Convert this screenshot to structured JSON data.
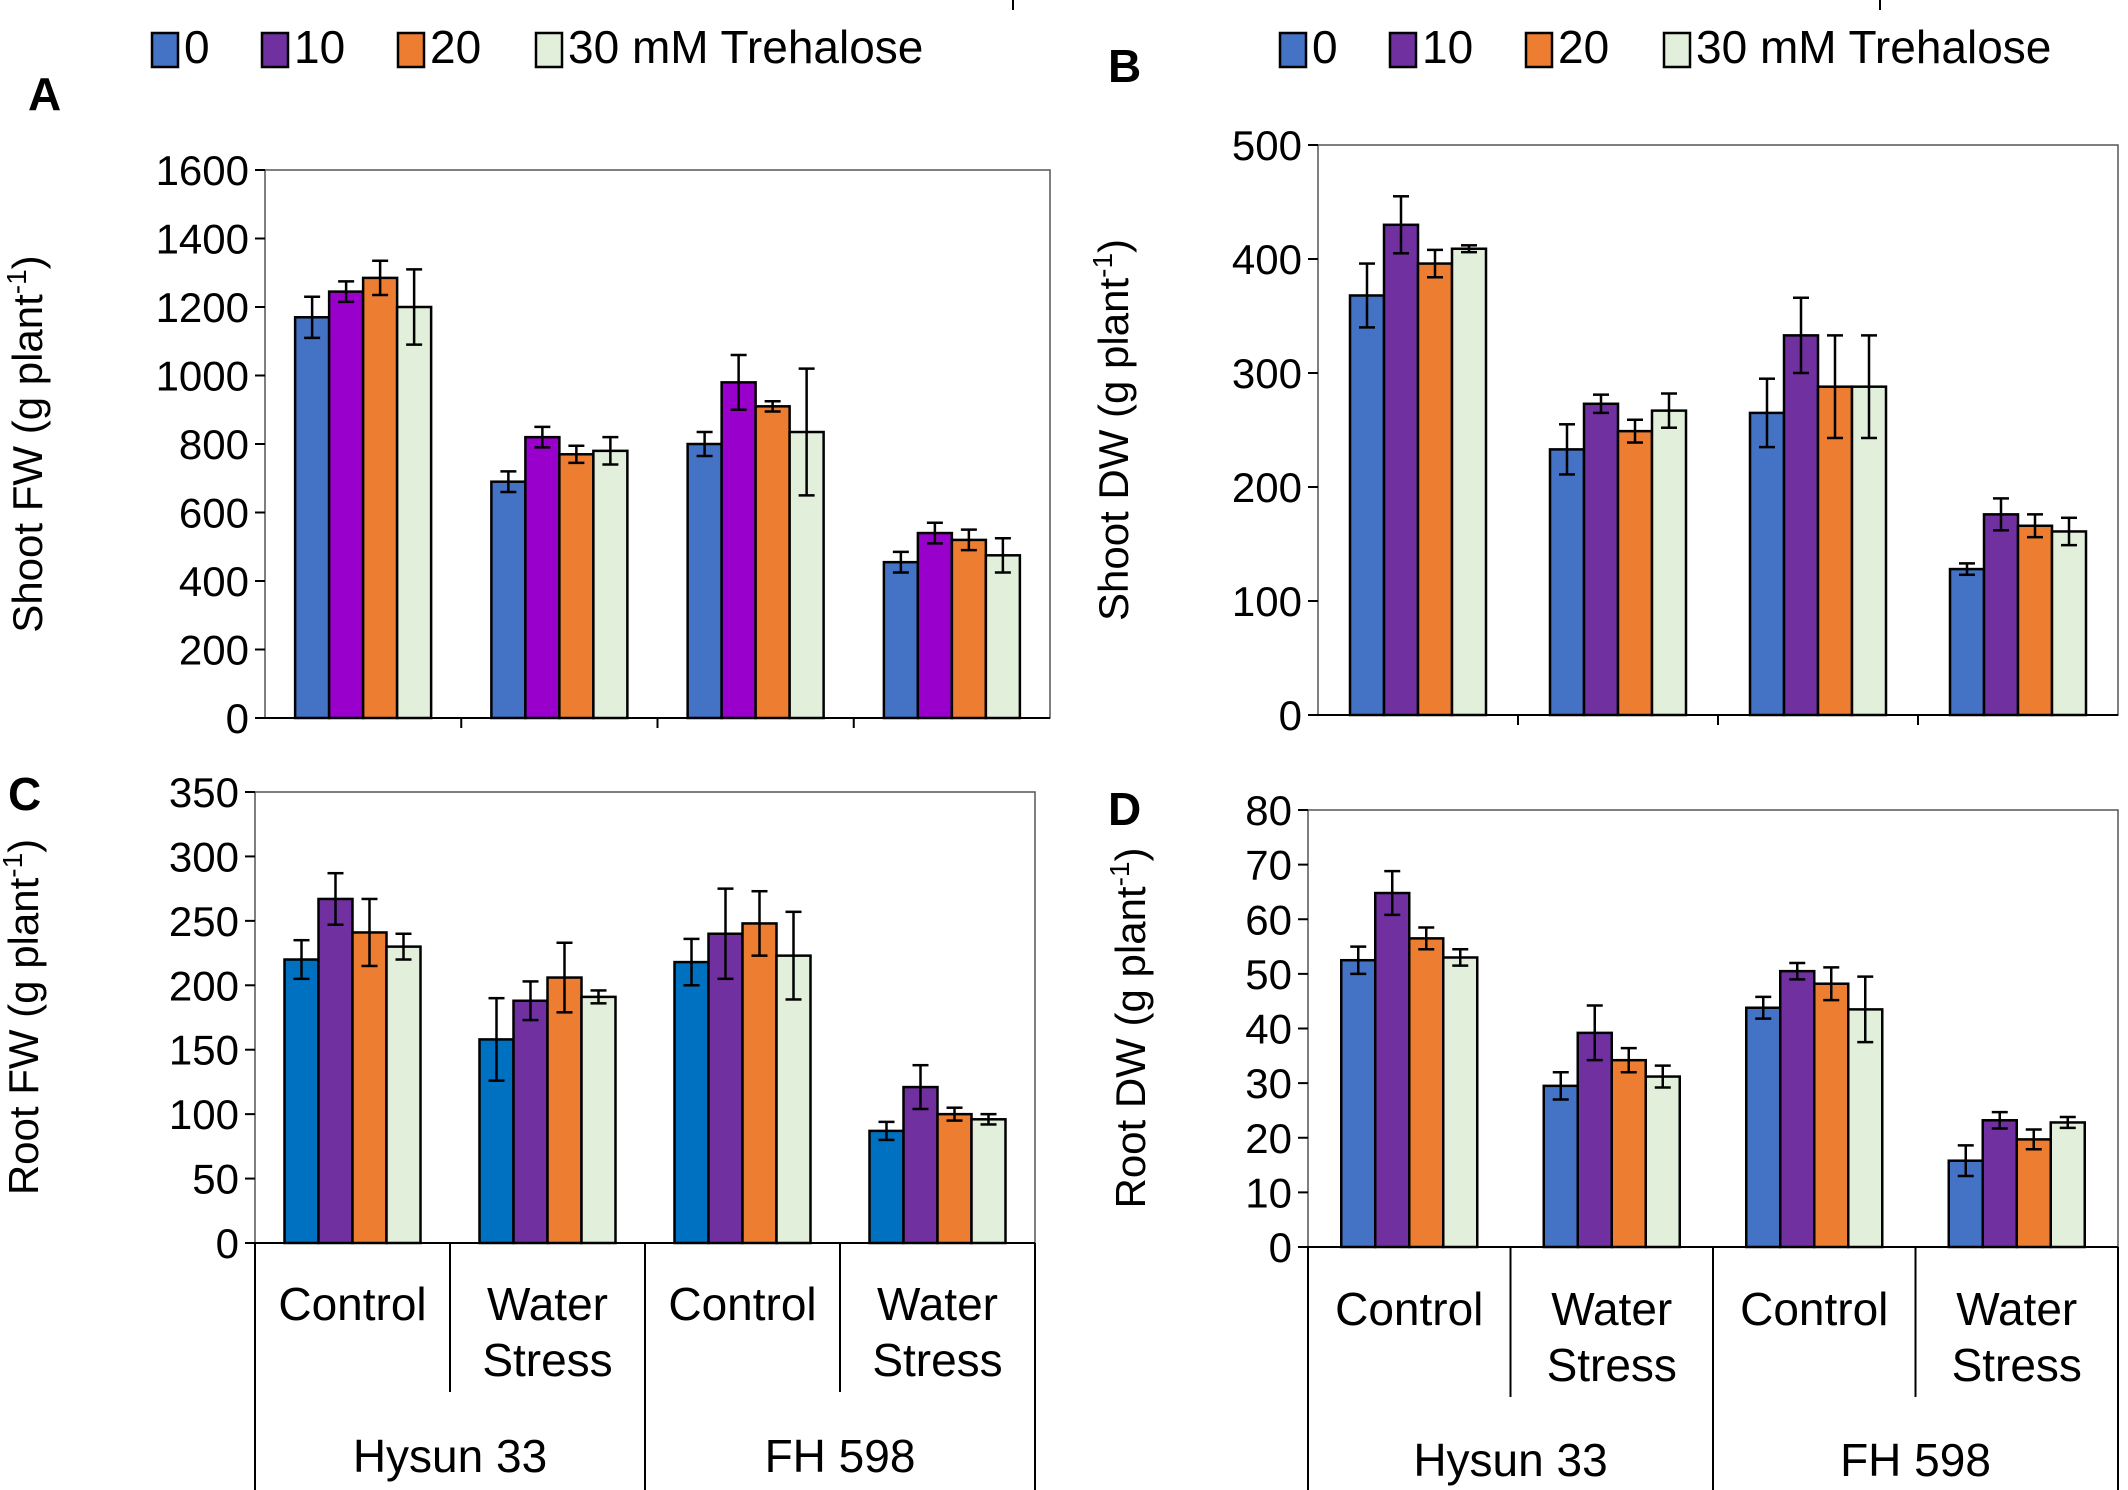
{
  "legend": {
    "items": [
      {
        "label": "0",
        "color": "#4472C4"
      },
      {
        "label": "10",
        "color": "#7030A0"
      },
      {
        "label": "20",
        "color": "#ED7D31"
      },
      {
        "label": "30 mM Trehalose",
        "color": "#E2EFDA"
      }
    ]
  },
  "x_axis": {
    "conditions": [
      "Control",
      "Water\nStress",
      "Control",
      "Water\nStress"
    ],
    "genotypes": [
      "Hysun 33",
      "FH 598"
    ]
  },
  "chart_data": [
    {
      "panel": "A",
      "type": "bar",
      "ylabel": "Shoot FW (g plant",
      "ylabel_sup": "-1",
      "ylabel_close": ")",
      "ylim": [
        0,
        1600
      ],
      "yticks": [
        0,
        200,
        400,
        600,
        800,
        1000,
        1200,
        1400,
        1600
      ],
      "categories": [
        "Hysun 33 Control",
        "Hysun 33 Water Stress",
        "FH 598 Control",
        "FH 598 Water Stress"
      ],
      "series": [
        {
          "name": "0",
          "color": "#4472C4",
          "values": [
            1170,
            690,
            800,
            455
          ],
          "errors": [
            60,
            30,
            35,
            30
          ]
        },
        {
          "name": "10",
          "color": "#9900CC",
          "values": [
            1245,
            820,
            980,
            540
          ],
          "errors": [
            30,
            30,
            80,
            30
          ]
        },
        {
          "name": "20",
          "color": "#ED7D31",
          "values": [
            1285,
            770,
            910,
            520
          ],
          "errors": [
            50,
            25,
            15,
            30
          ]
        },
        {
          "name": "30 mM Trehalose",
          "color": "#E2EFDA",
          "values": [
            1200,
            780,
            835,
            475
          ],
          "errors": [
            110,
            40,
            185,
            50
          ]
        }
      ]
    },
    {
      "panel": "B",
      "type": "bar",
      "ylabel": "Shoot DW (g plant",
      "ylabel_sup": "-1",
      "ylabel_close": ")",
      "ylim": [
        0,
        500
      ],
      "yticks": [
        0,
        100,
        200,
        300,
        400,
        500
      ],
      "categories": [
        "Hysun 33 Control",
        "Hysun 33 Water Stress",
        "FH 598 Control",
        "FH 598 Water Stress"
      ],
      "series": [
        {
          "name": "0",
          "color": "#4472C4",
          "values": [
            368,
            233,
            265,
            128
          ],
          "errors": [
            28,
            22,
            30,
            5
          ]
        },
        {
          "name": "10",
          "color": "#7030A0",
          "values": [
            430,
            273,
            333,
            176
          ],
          "errors": [
            25,
            8,
            33,
            14
          ]
        },
        {
          "name": "20",
          "color": "#ED7D31",
          "values": [
            396,
            249,
            288,
            166
          ],
          "errors": [
            12,
            10,
            45,
            10
          ]
        },
        {
          "name": "30 mM Trehalose",
          "color": "#E2EFDA",
          "values": [
            409,
            267,
            288,
            161
          ],
          "errors": [
            3,
            15,
            45,
            12
          ]
        }
      ]
    },
    {
      "panel": "C",
      "type": "bar",
      "ylabel": "Root FW (g plant",
      "ylabel_sup": "-1",
      "ylabel_close": ")",
      "ylim": [
        0,
        350
      ],
      "yticks": [
        0,
        50,
        100,
        150,
        200,
        250,
        300,
        350
      ],
      "categories": [
        "Hysun 33 Control",
        "Hysun 33 Water Stress",
        "FH 598 Control",
        "FH 598 Water Stress"
      ],
      "series": [
        {
          "name": "0",
          "color": "#0070C0",
          "values": [
            220,
            158,
            218,
            87
          ],
          "errors": [
            15,
            32,
            18,
            7
          ]
        },
        {
          "name": "10",
          "color": "#7030A0",
          "values": [
            267,
            188,
            240,
            121
          ],
          "errors": [
            20,
            15,
            35,
            17
          ]
        },
        {
          "name": "20",
          "color": "#ED7D31",
          "values": [
            241,
            206,
            248,
            100
          ],
          "errors": [
            26,
            27,
            25,
            5
          ]
        },
        {
          "name": "30 mM Trehalose",
          "color": "#E2EFDA",
          "values": [
            230,
            191,
            223,
            96
          ],
          "errors": [
            10,
            5,
            34,
            4
          ]
        }
      ]
    },
    {
      "panel": "D",
      "type": "bar",
      "ylabel": "Root DW (g plant",
      "ylabel_sup": "-1",
      "ylabel_close": ")",
      "ylim": [
        0,
        80
      ],
      "yticks": [
        0,
        10,
        20,
        30,
        40,
        50,
        60,
        70,
        80
      ],
      "categories": [
        "Hysun 33 Control",
        "Hysun 33 Water Stress",
        "FH 598 Control",
        "FH 598 Water Stress"
      ],
      "series": [
        {
          "name": "0",
          "color": "#4472C4",
          "values": [
            52.5,
            29.5,
            43.8,
            15.8
          ],
          "errors": [
            2.5,
            2.5,
            2,
            2.8
          ]
        },
        {
          "name": "10",
          "color": "#7030A0",
          "values": [
            64.8,
            39.2,
            50.5,
            23.2
          ],
          "errors": [
            4,
            5,
            1.5,
            1.5
          ]
        },
        {
          "name": "20",
          "color": "#ED7D31",
          "values": [
            56.5,
            34.2,
            48.2,
            19.7
          ],
          "errors": [
            2,
            2.2,
            3,
            1.8
          ]
        },
        {
          "name": "30 mM Trehalose",
          "color": "#E2EFDA",
          "values": [
            53,
            31.2,
            43.5,
            22.8
          ],
          "errors": [
            1.5,
            2,
            6,
            1
          ]
        }
      ]
    }
  ]
}
